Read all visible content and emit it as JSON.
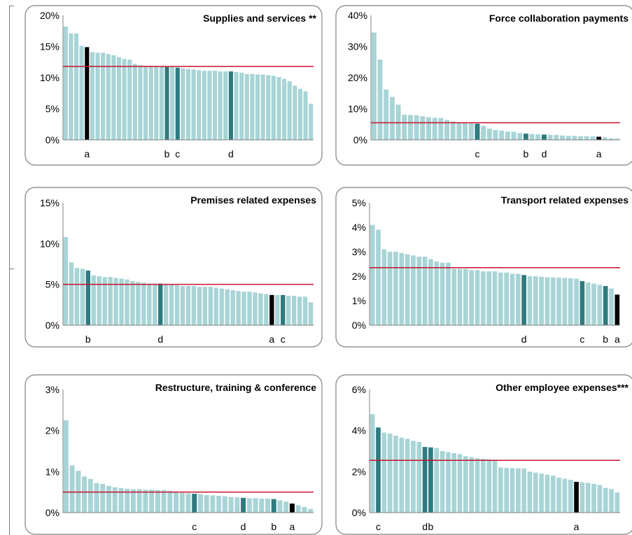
{
  "colors": {
    "bar": "#a8d4d6",
    "highlight": "#2e7b7f",
    "black": "#000000",
    "average_line": "#c8102e",
    "panel_border": "#808080"
  },
  "chart_data": [
    {
      "type": "bar",
      "title": "Supplies and services **",
      "yticks": [
        "0%",
        "5%",
        "10%",
        "15%",
        "20%"
      ],
      "ylim": [
        0,
        20
      ],
      "average": 11.8,
      "values": [
        18.2,
        17.1,
        17.1,
        15.1,
        14.9,
        14.1,
        14.0,
        14.0,
        13.8,
        13.6,
        13.3,
        13.0,
        12.9,
        12.2,
        12.0,
        11.9,
        11.9,
        11.8,
        11.8,
        11.7,
        11.7,
        11.6,
        11.5,
        11.4,
        11.3,
        11.2,
        11.1,
        11.1,
        11.1,
        11.0,
        11.0,
        11.0,
        10.9,
        10.8,
        10.6,
        10.6,
        10.5,
        10.5,
        10.4,
        10.3,
        10.1,
        9.8,
        9.4,
        8.7,
        8.2,
        7.8,
        5.8
      ],
      "marked": [
        {
          "index": 4,
          "label": "a",
          "color": "black"
        },
        {
          "index": 19,
          "label": "b",
          "color": "highlight"
        },
        {
          "index": 21,
          "label": "c",
          "color": "highlight"
        },
        {
          "index": 31,
          "label": "d",
          "color": "highlight"
        }
      ]
    },
    {
      "type": "bar",
      "title": "Force collaboration payments",
      "yticks": [
        "0%",
        "10%",
        "20%",
        "30%",
        "40%"
      ],
      "ylim": [
        0,
        40
      ],
      "average": 5.5,
      "values": [
        34.5,
        25.8,
        16.2,
        13.8,
        11.3,
        8.1,
        8.0,
        7.9,
        7.6,
        7.3,
        7.1,
        7.0,
        6.4,
        5.9,
        5.6,
        5.4,
        5.3,
        5.2,
        4.5,
        3.6,
        3.2,
        3.0,
        2.7,
        2.6,
        2.2,
        2.0,
        1.9,
        1.8,
        1.7,
        1.6,
        1.6,
        1.4,
        1.3,
        1.3,
        1.2,
        1.2,
        1.1,
        1.0,
        0.8,
        0.5,
        0.4
      ],
      "marked": [
        {
          "index": 17,
          "label": "c",
          "color": "highlight"
        },
        {
          "index": 25,
          "label": "b",
          "color": "highlight"
        },
        {
          "index": 28,
          "label": "d",
          "color": "highlight"
        },
        {
          "index": 37,
          "label": "a",
          "color": "black"
        }
      ]
    },
    {
      "type": "bar",
      "title": "Premises related expenses",
      "yticks": [
        "0%",
        "5%",
        "10%",
        "15%"
      ],
      "ylim": [
        0,
        15
      ],
      "average": 5.0,
      "values": [
        10.8,
        7.7,
        7.0,
        6.9,
        6.7,
        6.1,
        6.0,
        5.9,
        5.9,
        5.8,
        5.7,
        5.6,
        5.4,
        5.3,
        5.2,
        5.1,
        5.1,
        5.1,
        5.0,
        5.0,
        4.9,
        4.8,
        4.8,
        4.8,
        4.7,
        4.7,
        4.7,
        4.6,
        4.5,
        4.4,
        4.3,
        4.2,
        4.1,
        4.1,
        4.0,
        3.9,
        3.8,
        3.7,
        3.7,
        3.7,
        3.6,
        3.6,
        3.5,
        3.5,
        2.8
      ],
      "marked": [
        {
          "index": 4,
          "label": "b",
          "color": "highlight"
        },
        {
          "index": 17,
          "label": "d",
          "color": "highlight"
        },
        {
          "index": 37,
          "label": "a",
          "color": "black"
        },
        {
          "index": 39,
          "label": "c",
          "color": "highlight"
        }
      ]
    },
    {
      "type": "bar",
      "title": "Transport related expenses",
      "yticks": [
        "0%",
        "1%",
        "2%",
        "3%",
        "4%",
        "5%"
      ],
      "ylim": [
        0,
        5
      ],
      "average": 2.35,
      "values": [
        4.1,
        3.9,
        3.1,
        3.0,
        3.0,
        2.95,
        2.9,
        2.85,
        2.8,
        2.8,
        2.7,
        2.6,
        2.55,
        2.55,
        2.3,
        2.3,
        2.3,
        2.25,
        2.25,
        2.2,
        2.2,
        2.2,
        2.15,
        2.15,
        2.1,
        2.1,
        2.05,
        2.0,
        2.0,
        1.98,
        1.96,
        1.95,
        1.94,
        1.93,
        1.92,
        1.9,
        1.8,
        1.75,
        1.7,
        1.65,
        1.6,
        1.5,
        1.25
      ],
      "marked": [
        {
          "index": 26,
          "label": "d",
          "color": "highlight"
        },
        {
          "index": 36,
          "label": "c",
          "color": "highlight"
        },
        {
          "index": 40,
          "label": "b",
          "color": "highlight"
        },
        {
          "index": 42,
          "label": "a",
          "color": "black"
        }
      ]
    },
    {
      "type": "bar",
      "title": "Restructure, training & conference",
      "yticks": [
        "0%",
        "1%",
        "2%",
        "3%"
      ],
      "ylim": [
        0,
        3
      ],
      "average": 0.5,
      "values": [
        2.25,
        1.15,
        1.02,
        0.88,
        0.82,
        0.72,
        0.7,
        0.65,
        0.62,
        0.6,
        0.58,
        0.57,
        0.57,
        0.56,
        0.56,
        0.55,
        0.55,
        0.53,
        0.5,
        0.48,
        0.47,
        0.46,
        0.45,
        0.43,
        0.42,
        0.41,
        0.4,
        0.38,
        0.37,
        0.36,
        0.35,
        0.35,
        0.34,
        0.34,
        0.33,
        0.3,
        0.27,
        0.22,
        0.18,
        0.14,
        0.09
      ],
      "marked": [
        {
          "index": 21,
          "label": "c",
          "color": "highlight"
        },
        {
          "index": 29,
          "label": "d",
          "color": "highlight"
        },
        {
          "index": 34,
          "label": "b",
          "color": "highlight"
        },
        {
          "index": 37,
          "label": "a",
          "color": "black"
        }
      ]
    },
    {
      "type": "bar",
      "title": "Other employee expenses***",
      "yticks": [
        "0%",
        "2%",
        "4%",
        "6%"
      ],
      "ylim": [
        0,
        6
      ],
      "average": 2.55,
      "values": [
        4.8,
        4.15,
        3.9,
        3.85,
        3.75,
        3.65,
        3.6,
        3.5,
        3.45,
        3.2,
        3.18,
        3.15,
        3.0,
        2.95,
        2.9,
        2.85,
        2.75,
        2.7,
        2.65,
        2.62,
        2.6,
        2.58,
        2.2,
        2.18,
        2.17,
        2.16,
        2.15,
        2.0,
        1.95,
        1.9,
        1.85,
        1.8,
        1.7,
        1.65,
        1.6,
        1.5,
        1.48,
        1.45,
        1.4,
        1.35,
        1.2,
        1.15,
        0.98
      ],
      "marked": [
        {
          "index": 1,
          "label": "c",
          "color": "highlight"
        },
        {
          "index": 9,
          "label": "d",
          "color": "highlight"
        },
        {
          "index": 10,
          "label": "b",
          "color": "highlight"
        },
        {
          "index": 35,
          "label": "a",
          "color": "black"
        }
      ]
    }
  ]
}
